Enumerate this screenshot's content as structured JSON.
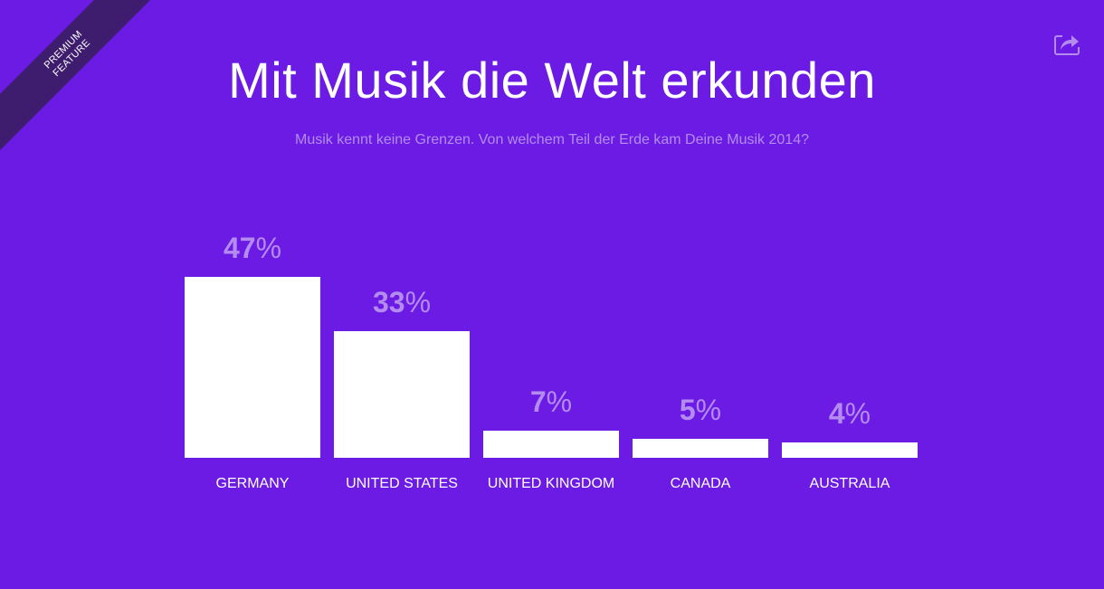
{
  "ribbon": {
    "line1": "PREMIUM",
    "line2": "FEATURE"
  },
  "share_icon": "share-icon",
  "colors": {
    "background": "#6b1be4",
    "bar": "#ffffff",
    "value_label": "#b48cf0",
    "ribbon": "#3f1d6e"
  },
  "chart_data": {
    "type": "bar",
    "title": "Mit Musik die Welt erkunden",
    "subtitle": "Musik kennt keine Grenzen. Von welchem Teil der Erde kam Deine Musik 2014?",
    "categories": [
      "GERMANY",
      "UNITED STATES",
      "UNITED KINGDOM",
      "CANADA",
      "AUSTRALIA"
    ],
    "values": [
      47,
      33,
      7,
      5,
      4
    ],
    "value_suffix": "%",
    "ylim": [
      0,
      47
    ],
    "grid": false
  }
}
